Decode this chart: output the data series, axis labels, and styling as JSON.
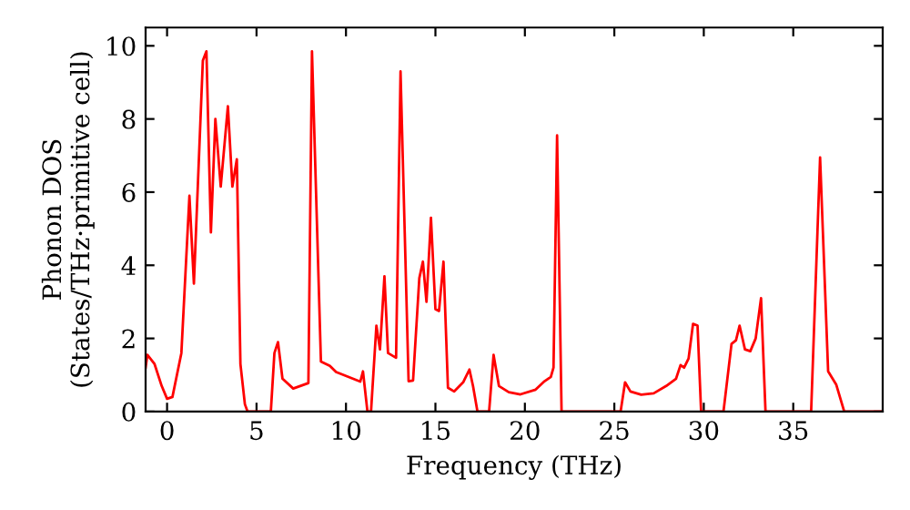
{
  "chart_data": {
    "type": "line",
    "xlabel": "Frequency (THz)",
    "ylabel": "Phonon DOS\n(States/THz·primitive cell)",
    "xlim": [
      -1.2,
      40
    ],
    "ylim": [
      0,
      10.5
    ],
    "xticks": [
      0,
      5,
      10,
      15,
      20,
      25,
      30,
      35
    ],
    "yticks": [
      0,
      2,
      4,
      6,
      8,
      10
    ],
    "grid": false,
    "legend": false,
    "marker": "none",
    "line_style": "solid",
    "series": [
      {
        "color": "#ff0000",
        "x": [
          -1.2,
          -1.1,
          -0.7,
          -0.3,
          0,
          0.3,
          0.8,
          1.25,
          1.5,
          2.0,
          2.2,
          2.45,
          2.7,
          3.0,
          3.4,
          3.65,
          3.9,
          4.1,
          4.35,
          4.5,
          5.8,
          6.0,
          6.2,
          6.45,
          7.05,
          7.9,
          8.1,
          8.6,
          9.1,
          9.45,
          10.8,
          10.95,
          11.2,
          11.4,
          11.7,
          11.9,
          12.15,
          12.35,
          12.8,
          13.05,
          13.5,
          13.75,
          14.1,
          14.3,
          14.5,
          14.75,
          15.0,
          15.2,
          15.45,
          15.7,
          16.05,
          16.55,
          16.9,
          17.1,
          17.35,
          18.0,
          18.25,
          18.55,
          19.1,
          19.75,
          20.6,
          21.1,
          21.45,
          21.6,
          21.8,
          22.05,
          25.35,
          25.6,
          25.9,
          26.5,
          27.2,
          27.9,
          28.45,
          28.7,
          28.9,
          29.15,
          29.4,
          29.65,
          29.85,
          31.1,
          31.55,
          31.8,
          32.0,
          32.3,
          32.6,
          32.9,
          33.2,
          33.45,
          36.0,
          36.5,
          36.95,
          37.4,
          37.85,
          39.9
        ],
        "values": [
          1.2,
          1.55,
          1.3,
          0.7,
          0.35,
          0.4,
          1.6,
          5.9,
          3.5,
          9.6,
          9.85,
          4.9,
          8.0,
          6.15,
          8.35,
          6.15,
          6.9,
          1.3,
          0.2,
          0,
          0,
          1.6,
          1.9,
          0.9,
          0.63,
          0.78,
          9.85,
          1.37,
          1.25,
          1.08,
          0.82,
          1.1,
          0,
          0,
          2.35,
          1.7,
          3.7,
          1.6,
          1.47,
          9.3,
          0.83,
          0.85,
          3.65,
          4.1,
          3.0,
          5.3,
          2.8,
          2.75,
          4.1,
          0.65,
          0.55,
          0.8,
          1.15,
          0.7,
          0,
          0,
          1.55,
          0.7,
          0.53,
          0.47,
          0.6,
          0.83,
          0.95,
          1.2,
          7.55,
          0,
          0,
          0.8,
          0.55,
          0.46,
          0.5,
          0.7,
          0.9,
          1.27,
          1.2,
          1.45,
          2.4,
          2.35,
          0,
          0,
          1.85,
          1.95,
          2.35,
          1.7,
          1.65,
          2.0,
          3.1,
          0,
          0,
          6.95,
          1.1,
          0.74,
          0,
          0
        ]
      }
    ]
  }
}
